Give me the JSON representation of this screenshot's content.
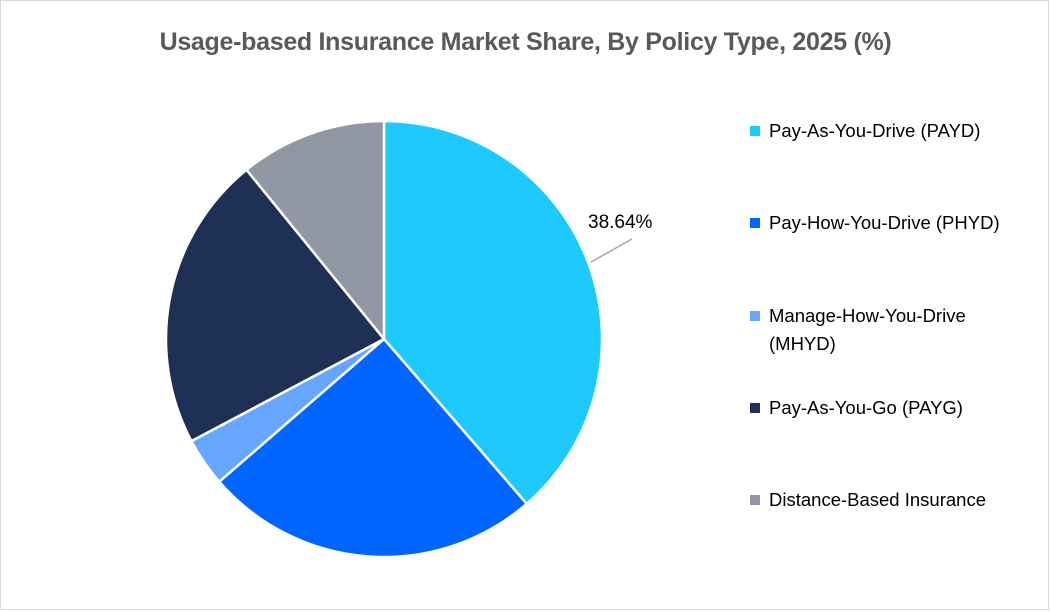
{
  "chart_data": {
    "type": "pie",
    "title": "Usage-based Insurance Market Share, By Policy Type, 2025 (%)",
    "categories": [
      "Pay-As-You-Drive (PAYD)",
      "Pay-How-You-Drive (PHYD)",
      "Manage-How-You-Drive (MHYD)",
      "Pay-As-You-Go (PAYG)",
      "Distance-Based Insurance"
    ],
    "values": [
      38.64,
      25.0,
      3.6,
      21.9,
      10.86
    ],
    "colors": [
      "#1ec9fb",
      "#0066ff",
      "#66a6ff",
      "#1e3054",
      "#9197a3"
    ],
    "data_labels": [
      {
        "category": "Pay-As-You-Drive (PAYD)",
        "text": "38.64%"
      }
    ],
    "start_angle_deg": 0,
    "direction": "clockwise",
    "legend_position": "right"
  },
  "title": "Usage-based Insurance Market Share, By Policy Type, 2025 (%)",
  "data_label": "38.64%",
  "legend": {
    "items": [
      {
        "label": "Pay-As-You-Drive (PAYD)",
        "color": "#1ec9fb"
      },
      {
        "label": "Pay-How-You-Drive (PHYD)",
        "color": "#0066ff"
      },
      {
        "label": "Manage-How-You-Drive (MHYD)",
        "color": "#66a6ff"
      },
      {
        "label": "Pay-As-You-Go (PAYG)",
        "color": "#1e3054"
      },
      {
        "label": "Distance-Based Insurance",
        "color": "#9197a3"
      }
    ]
  }
}
